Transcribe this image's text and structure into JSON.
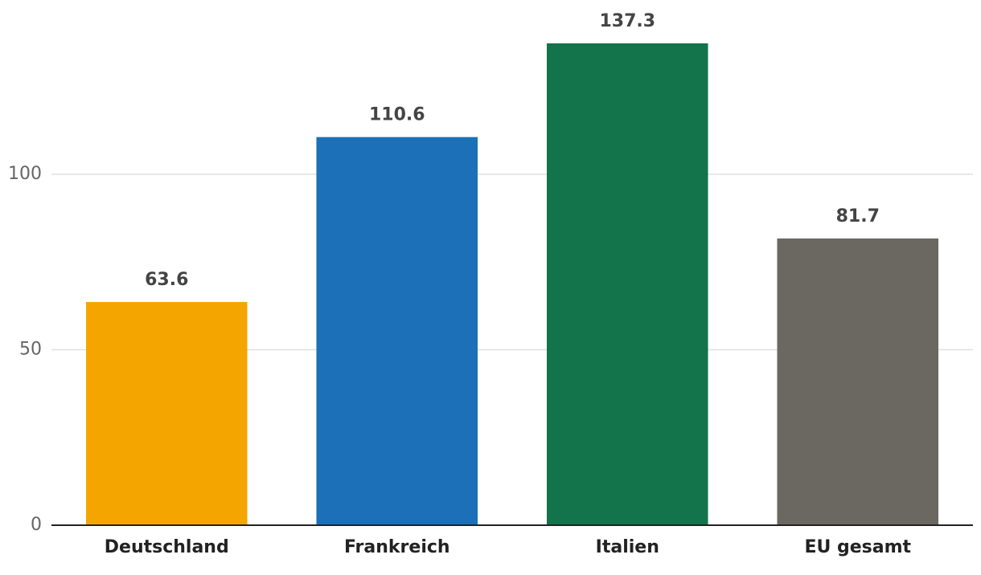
{
  "chart_data": {
    "type": "bar",
    "categories": [
      "Deutschland",
      "Frankreich",
      "Italien",
      "EU gesamt"
    ],
    "values": [
      63.6,
      110.6,
      137.3,
      81.7
    ],
    "colors": [
      "#f5a500",
      "#1b70b7",
      "#13734b",
      "#6b6861"
    ],
    "ylim": [
      0,
      145
    ],
    "yticks": [
      0,
      50,
      100
    ],
    "grid": true
  }
}
